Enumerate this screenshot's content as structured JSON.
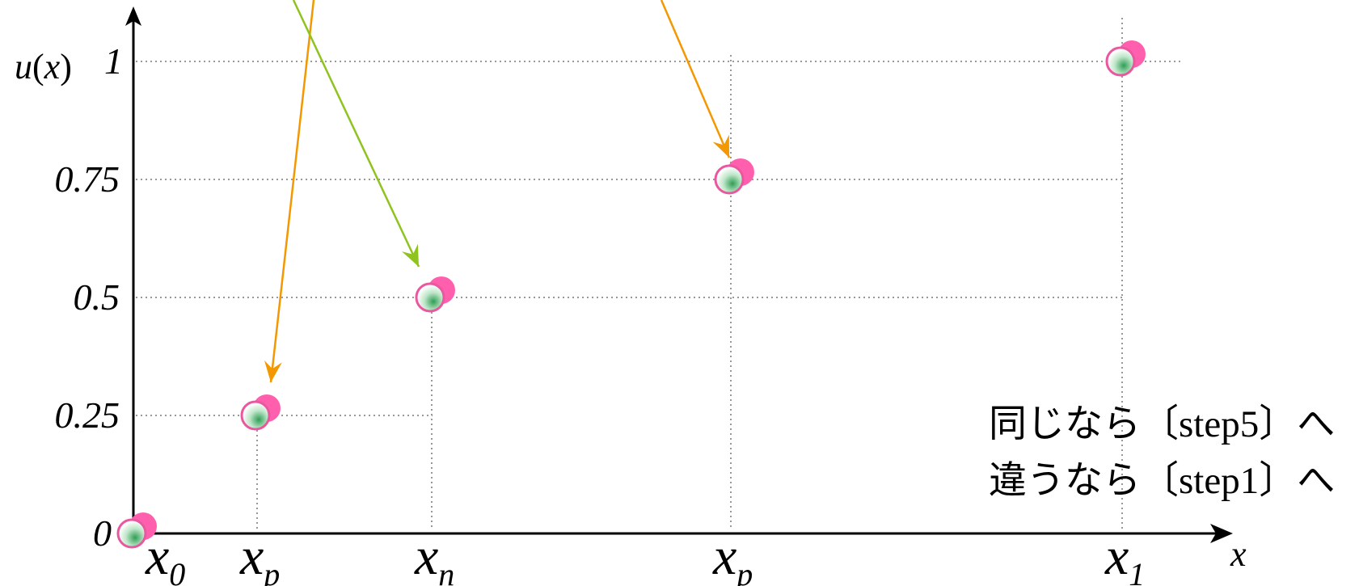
{
  "chart_data": {
    "type": "scatter",
    "title": "",
    "xlabel": "x",
    "ylabel_var": "u",
    "ylabel_arg": "x",
    "ylim": [
      0,
      1
    ],
    "y_ticks": [
      "0",
      "0.25",
      "0.5",
      "0.75",
      "1"
    ],
    "x_ticks": [
      {
        "main": "x",
        "sub": "0"
      },
      {
        "main": "x",
        "sub": "p"
      },
      {
        "main": "x",
        "sub": "n"
      },
      {
        "main": "x",
        "sub": "p"
      },
      {
        "main": "x",
        "sub": "1"
      }
    ],
    "points": [
      {
        "x_label_index": 0,
        "y": 0
      },
      {
        "x_label_index": 1,
        "y": 0.25
      },
      {
        "x_label_index": 2,
        "y": 0.5
      },
      {
        "x_label_index": 3,
        "y": 0.75
      },
      {
        "x_label_index": 4,
        "y": 1
      }
    ],
    "grid": "dotted",
    "annotation": {
      "line1": [
        "同じなら",
        "〔",
        "step5",
        "〕",
        "へ"
      ],
      "line2": [
        "違うなら",
        "〔",
        "step1",
        "〕",
        "へ"
      ]
    },
    "arrows": [
      {
        "color": "#f39800",
        "to_point_index": 1
      },
      {
        "color": "#8fc31f",
        "to_point_index": 2
      },
      {
        "color": "#f39800",
        "to_point_index": 3
      }
    ],
    "colors": {
      "axis": "#000000",
      "grid": "#999999",
      "point_back": "#ff5fad",
      "point_front_ring": "#e8579f",
      "point_front_fill_center": "#2f9e55"
    }
  }
}
